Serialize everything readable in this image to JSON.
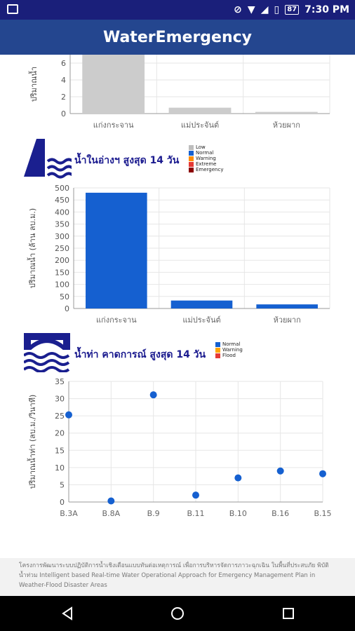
{
  "status_bar": {
    "time": "7:30 PM",
    "battery": "87",
    "icons": [
      "image-icon",
      "dnd-icon",
      "wifi-icon",
      "signal-icon",
      "sim-icon",
      "battery-icon"
    ]
  },
  "app": {
    "title": "WaterEmergency"
  },
  "section_2": {
    "title": "น้ำในอ่างฯ สูงสุด 14 วัน",
    "legend": [
      {
        "label": "Low",
        "color": "#bdbdbd"
      },
      {
        "label": "Normal",
        "color": "#1560d0"
      },
      {
        "label": "Warning",
        "color": "#ff8c00"
      },
      {
        "label": "Extreme",
        "color": "#e53935"
      },
      {
        "label": "Emergency",
        "color": "#8b0000"
      }
    ]
  },
  "section_3": {
    "title": "น้ำท่า คาดการณ์ สูงสุด 14 วัน",
    "legend": [
      {
        "label": "Normal",
        "color": "#1560d0"
      },
      {
        "label": "Warning",
        "color": "#ffa500"
      },
      {
        "label": "Flood",
        "color": "#e53935"
      }
    ]
  },
  "footer": {
    "text": "โครงการพัฒนาระบบปฏิบัติการน้ำเชิงเตือนแบบทันต่อเหตุการณ์ เพื่อการบริหารจัดการภาวะฉุกเฉิน ในพื้นที่ประสบภัย พิบัติน้ำท่วม Intelligent based Real-time Water Operational Approach for Emergency Management Plan in Weather-Flood Disaster Areas"
  },
  "chart_data": [
    {
      "type": "bar",
      "categories": [
        "แก่งกระจาน",
        "แม่ประจันต์",
        "ห้วยผาก"
      ],
      "values": [
        7.1,
        0.7,
        0.2
      ],
      "ylabel": "ปริมาณน้ำ",
      "yticks": [
        0,
        2,
        4,
        6
      ],
      "color": "#cccccc",
      "grid": true
    },
    {
      "type": "bar",
      "categories": [
        "แก่งกระจาน",
        "แม่ประจันต์",
        "ห้วยผาก"
      ],
      "values": [
        480,
        33,
        17
      ],
      "ylabel": "ปริมาณน้ำ (ล้าน ลบ.ม.)",
      "ylim": [
        0,
        500
      ],
      "yticks": [
        0,
        50,
        100,
        150,
        200,
        250,
        300,
        350,
        400,
        450,
        500
      ],
      "color": "#1560d0",
      "grid": true
    },
    {
      "type": "scatter",
      "categories": [
        "B.3A",
        "B.8A",
        "B.9",
        "B.11",
        "B.10",
        "B.16",
        "B.15"
      ],
      "values": [
        25.3,
        0.3,
        31.1,
        2.0,
        7.0,
        9.0,
        8.2
      ],
      "ylabel": "ปริมาณน้ำท่า (ลบ.ม./วินาที)",
      "ylim": [
        0,
        35
      ],
      "yticks": [
        0,
        5,
        10,
        15,
        20,
        25,
        30,
        35
      ],
      "color": "#1560d0",
      "grid": true
    }
  ]
}
